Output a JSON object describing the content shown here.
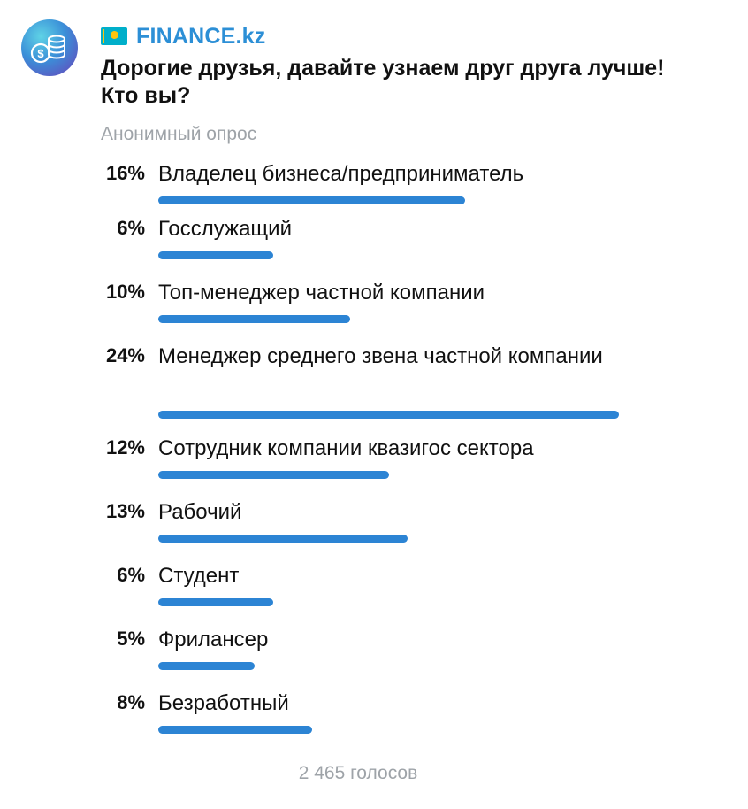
{
  "channel": {
    "name": "FINANCE.kz",
    "flag_icon": "kazakhstan-flag-icon",
    "avatar_icon": "coins-dollar-icon"
  },
  "poll": {
    "question": "Дорогие друзья, давайте узнаем друг друга лучше! Кто вы?",
    "type": "Анонимный опрос",
    "bar_color": "#2c84d4",
    "options": [
      {
        "percent": "16%",
        "value": 16,
        "label": "Владелец бизнеса/предприниматель"
      },
      {
        "percent": "6%",
        "value": 6,
        "label": "Госслужащий"
      },
      {
        "percent": "10%",
        "value": 10,
        "label": "Топ-менеджер частной компании"
      },
      {
        "percent": "24%",
        "value": 24,
        "label": "Менеджер среднего звена частной компании"
      },
      {
        "percent": "12%",
        "value": 12,
        "label": "Сотрудник компании квазигос сектора"
      },
      {
        "percent": "13%",
        "value": 13,
        "label": "Рабочий"
      },
      {
        "percent": "6%",
        "value": 6,
        "label": "Студент"
      },
      {
        "percent": "5%",
        "value": 5,
        "label": "Фрилансер"
      },
      {
        "percent": "8%",
        "value": 8,
        "label": "Безработный"
      }
    ],
    "votes": "2 465 голосов"
  }
}
